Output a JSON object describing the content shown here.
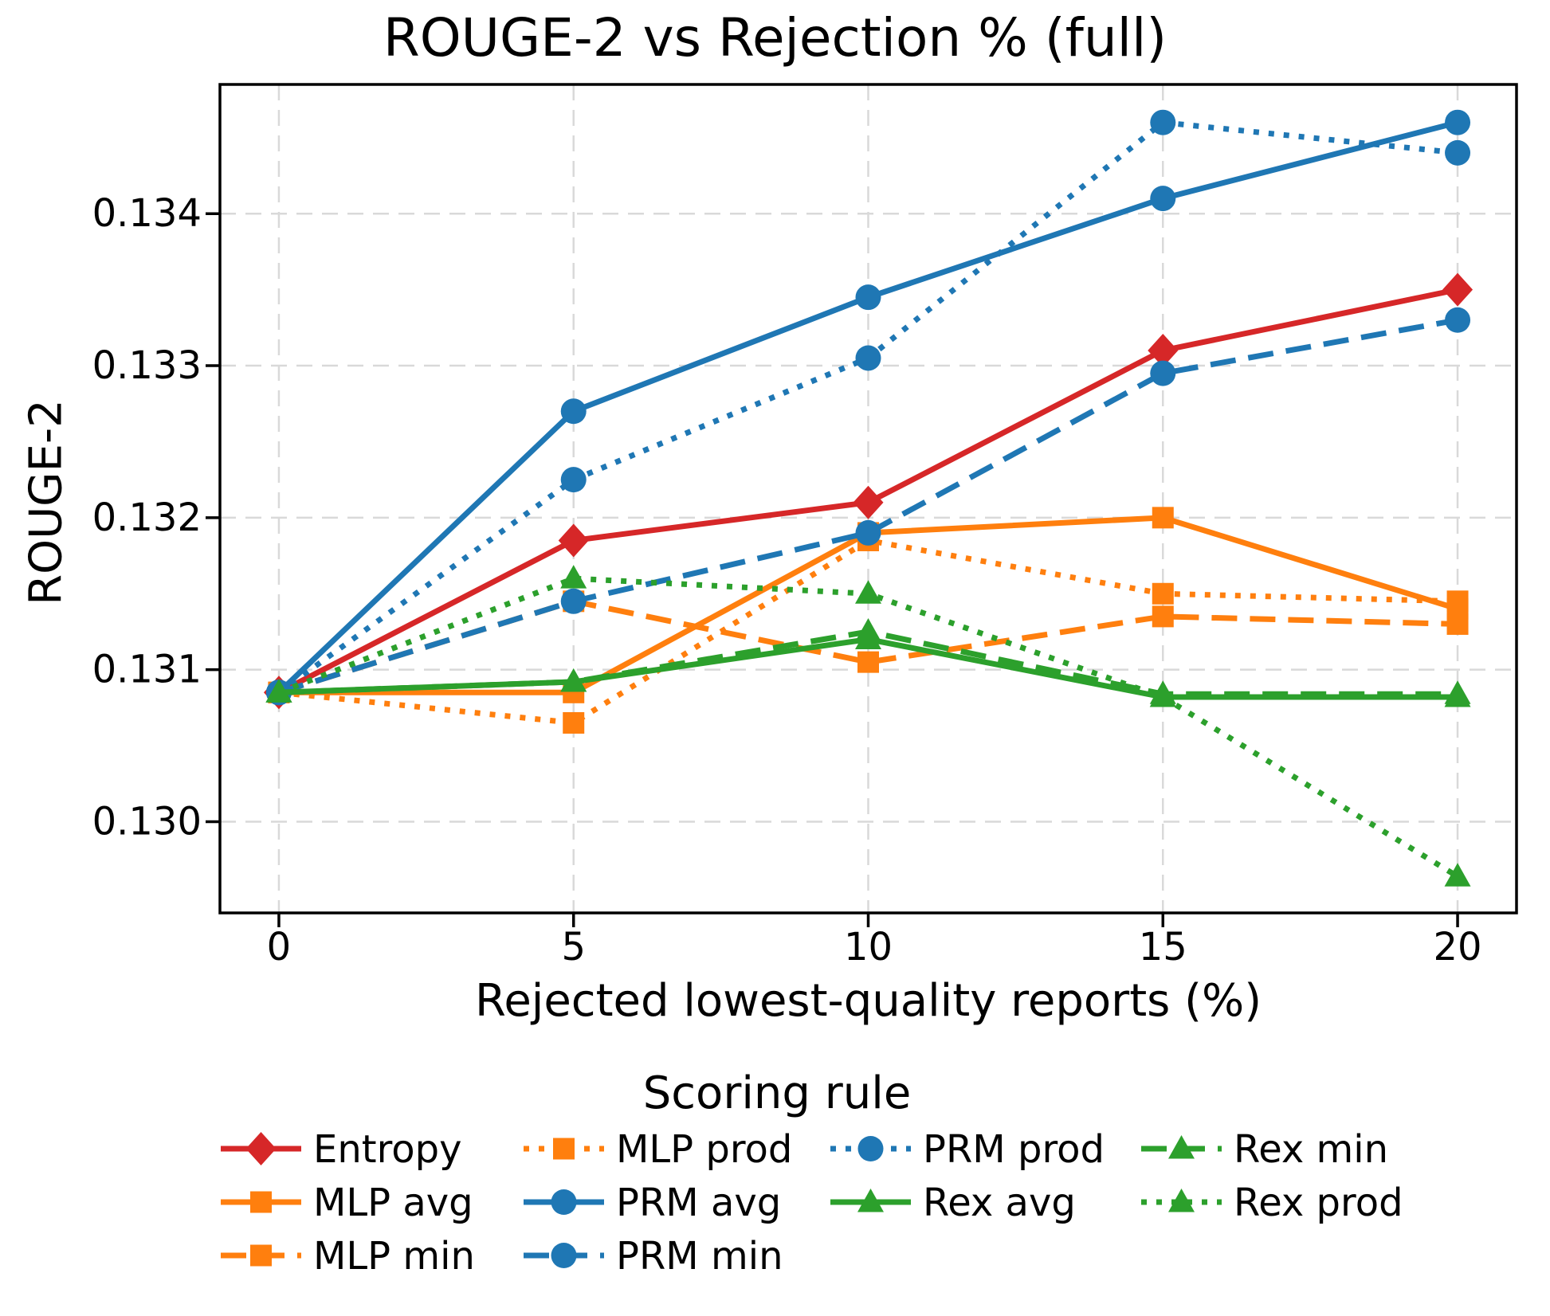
{
  "title": "ROUGE-2 vs Rejection % (full)",
  "chart_data": {
    "type": "line",
    "title": "ROUGE-2 vs Rejection % (full)",
    "xlabel": "Rejected lowest-quality reports (%)",
    "ylabel": "ROUGE-2",
    "legend_title": "Scoring rule",
    "legend_position": "below",
    "grid": true,
    "x": [
      0,
      5,
      10,
      15,
      20
    ],
    "xticks": [
      0,
      5,
      10,
      15,
      20
    ],
    "xtick_labels": [
      "0",
      "5",
      "10",
      "15",
      "20"
    ],
    "yticks": [
      0.13,
      0.131,
      0.132,
      0.133,
      0.134
    ],
    "ytick_labels": [
      "0.130",
      "0.131",
      "0.132",
      "0.133",
      "0.134"
    ],
    "xlim": [
      -1.0,
      21.0
    ],
    "ylim": [
      0.1294,
      0.13485
    ],
    "colors": {
      "red": "#d62728",
      "orange": "#ff7f0e",
      "blue": "#1f77b4",
      "green": "#2ca02c",
      "grid": "#d9d9d9"
    },
    "series": [
      {
        "name": "Entropy",
        "color": "#d62728",
        "linestyle": "solid",
        "marker": "diamond",
        "values": [
          0.13085,
          0.13185,
          0.1321,
          0.1331,
          0.1335
        ]
      },
      {
        "name": "MLP avg",
        "color": "#ff7f0e",
        "linestyle": "solid",
        "marker": "square",
        "values": [
          0.13085,
          0.13085,
          0.1319,
          0.132,
          0.1314
        ]
      },
      {
        "name": "MLP min",
        "color": "#ff7f0e",
        "linestyle": "dashed",
        "marker": "square",
        "values": [
          0.13085,
          0.13145,
          0.13105,
          0.13135,
          0.1313
        ]
      },
      {
        "name": "MLP prod",
        "color": "#ff7f0e",
        "linestyle": "dotted",
        "marker": "square",
        "values": [
          0.13085,
          0.13065,
          0.13185,
          0.1315,
          0.13145
        ]
      },
      {
        "name": "PRM avg",
        "color": "#1f77b4",
        "linestyle": "solid",
        "marker": "circle",
        "values": [
          0.13085,
          0.1327,
          0.13345,
          0.1341,
          0.1346
        ]
      },
      {
        "name": "PRM min",
        "color": "#1f77b4",
        "linestyle": "dashed",
        "marker": "circle",
        "values": [
          0.13085,
          0.13145,
          0.1319,
          0.13295,
          0.1333
        ]
      },
      {
        "name": "PRM prod",
        "color": "#1f77b4",
        "linestyle": "dotted",
        "marker": "circle",
        "values": [
          0.13085,
          0.13225,
          0.13305,
          0.1346,
          0.1344
        ]
      },
      {
        "name": "Rex avg",
        "color": "#2ca02c",
        "linestyle": "solid",
        "marker": "triangle",
        "values": [
          0.13085,
          0.13092,
          0.1312,
          0.13082,
          0.13082
        ]
      },
      {
        "name": "Rex min",
        "color": "#2ca02c",
        "linestyle": "dashed",
        "marker": "triangle",
        "values": [
          0.13085,
          0.13092,
          0.13125,
          0.13084,
          0.13084
        ]
      },
      {
        "name": "Rex prod",
        "color": "#2ca02c",
        "linestyle": "dotted",
        "marker": "triangle",
        "values": [
          0.13085,
          0.1316,
          0.1315,
          0.13082,
          0.12964
        ]
      }
    ],
    "legend_rows": [
      [
        "Entropy",
        "MLP prod",
        "PRM prod",
        "Rex min"
      ],
      [
        "MLP avg",
        "PRM avg",
        "Rex avg",
        "Rex prod"
      ],
      [
        "MLP min",
        "PRM min"
      ]
    ]
  }
}
